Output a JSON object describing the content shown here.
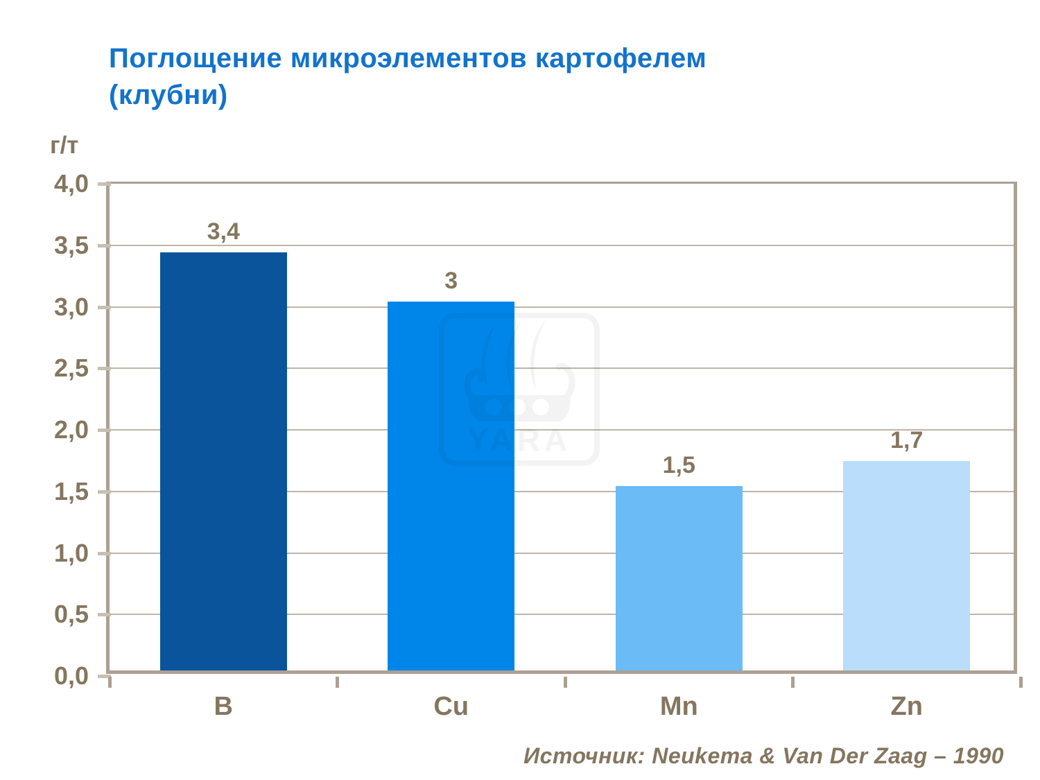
{
  "title": {
    "text": "Поглощение микроэлементов картофелем\n(клубни)"
  },
  "chart_data": {
    "type": "bar",
    "title": "Поглощение микроэлементов картофелем (клубни)",
    "categories": [
      "B",
      "Cu",
      "Mn",
      "Zn"
    ],
    "values": [
      3.4,
      3,
      1.5,
      1.7
    ],
    "value_labels": [
      "3,4",
      "3",
      "1,5",
      "1,7"
    ],
    "bar_colors": [
      "#0A549B",
      "#0086E8",
      "#6BBBF7",
      "#B9DDFB"
    ],
    "xlabel": "",
    "ylabel": "г/т",
    "ylim": [
      0,
      4
    ],
    "yticks": [
      {
        "value": 4.0,
        "label": "4,0"
      },
      {
        "value": 3.5,
        "label": "3,5"
      },
      {
        "value": 3.0,
        "label": "3,0"
      },
      {
        "value": 2.5,
        "label": "2,5"
      },
      {
        "value": 2.0,
        "label": "2,0"
      },
      {
        "value": 1.5,
        "label": "1,5"
      },
      {
        "value": 1.0,
        "label": "1,0"
      },
      {
        "value": 0.5,
        "label": "0,5"
      },
      {
        "value": 0.0,
        "label": "0,0"
      }
    ],
    "grid": true,
    "legend": false
  },
  "watermark": {
    "text": "YARA"
  },
  "source": {
    "text": "Источник: Neukema & Van Der Zaag – 1990"
  },
  "style": {
    "title_color": "#1273CC",
    "axis_color": "#ACA093",
    "grid_color": "#BFB4A6",
    "ytick_color": "#C8BFB3",
    "label_color": "#84765F"
  }
}
